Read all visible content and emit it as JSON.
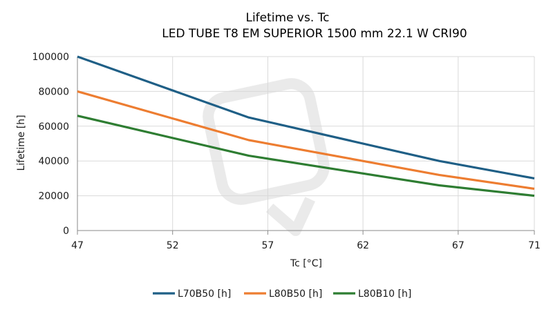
{
  "chart_data": {
    "type": "line",
    "title": "Lifetime vs. Tc",
    "subtitle": "LED TUBE T8 EM SUPERIOR 1500 mm 22.1 W CRI90",
    "xlabel": "Tc [°C]",
    "ylabel": "Lifetime [h]",
    "xlim": [
      47,
      71
    ],
    "ylim": [
      0,
      100000
    ],
    "x_ticks": [
      "47",
      "52",
      "57",
      "62",
      "67",
      "71"
    ],
    "x_tick_values": [
      47,
      52,
      57,
      62,
      67,
      71
    ],
    "y_ticks": [
      "0",
      "20000",
      "40000",
      "60000",
      "80000",
      "100000"
    ],
    "y_tick_values": [
      0,
      20000,
      40000,
      60000,
      80000,
      100000
    ],
    "grid": true,
    "legend_position": "bottom",
    "series": [
      {
        "name": "L70B50 [h]",
        "color": "#1f5f86",
        "x": [
          47,
          56,
          66,
          71
        ],
        "values": [
          100000,
          65000,
          40000,
          30000
        ]
      },
      {
        "name": "L80B50 [h]",
        "color": "#ed7d31",
        "x": [
          47,
          56,
          66,
          71
        ],
        "values": [
          80000,
          52000,
          32000,
          24000
        ]
      },
      {
        "name": "L80B10 [h]",
        "color": "#2e7d32",
        "x": [
          47,
          56,
          66,
          71
        ],
        "values": [
          66000,
          43000,
          26000,
          20000
        ]
      }
    ]
  }
}
